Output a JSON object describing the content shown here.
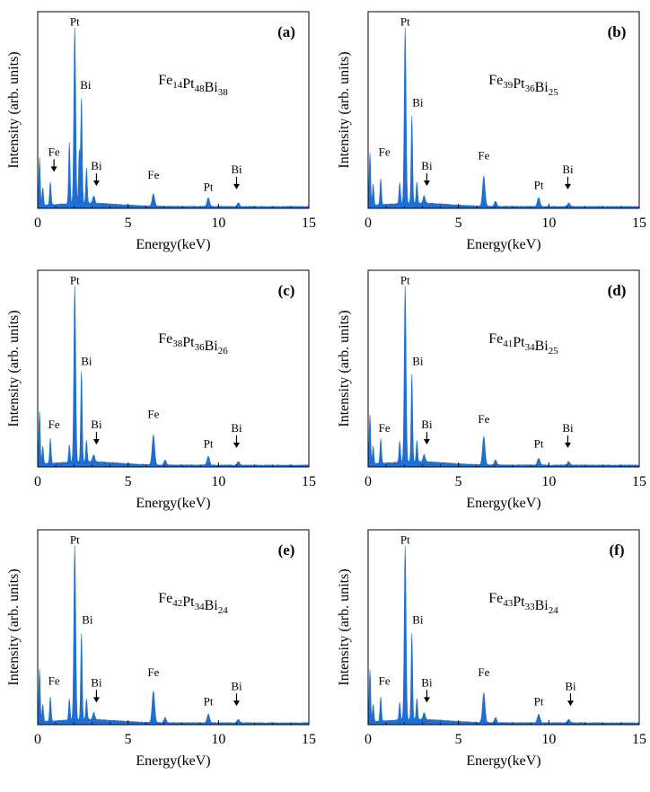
{
  "chart_data": [
    {
      "type": "area",
      "panel_label": "(a)",
      "composition": [
        {
          "el": "Fe",
          "n": "14"
        },
        {
          "el": "Pt",
          "n": "48"
        },
        {
          "el": "Bi",
          "n": "38"
        }
      ],
      "xlabel": "Energy(keV)",
      "ylabel": "Intensity (arb. units)",
      "xlim": [
        0,
        15
      ],
      "xticks": [
        "0",
        "5",
        "10",
        "15"
      ],
      "color": "#1f6fd1",
      "peaks": [
        {
          "x": 0.1,
          "y": 0.27,
          "w": 0.04
        },
        {
          "x": 0.28,
          "y": 0.1,
          "w": 0.04
        },
        {
          "x": 0.7,
          "y": 0.13,
          "w": 0.04
        },
        {
          "x": 1.75,
          "y": 0.35,
          "w": 0.04
        },
        {
          "x": 2.05,
          "y": 1.0,
          "w": 0.05
        },
        {
          "x": 2.3,
          "y": 0.3,
          "w": 0.04
        },
        {
          "x": 2.42,
          "y": 0.6,
          "w": 0.04
        },
        {
          "x": 2.7,
          "y": 0.2,
          "w": 0.04
        },
        {
          "x": 3.1,
          "y": 0.04,
          "w": 0.06
        },
        {
          "x": 6.4,
          "y": 0.07,
          "w": 0.07
        },
        {
          "x": 9.44,
          "y": 0.05,
          "w": 0.07
        },
        {
          "x": 11.1,
          "y": 0.02,
          "w": 0.07
        }
      ],
      "annotations": [
        {
          "text": "Pt",
          "x": 2.05,
          "y": 1.04,
          "arrow": false
        },
        {
          "text": "Bi",
          "x": 2.65,
          "y": 0.68,
          "arrow": false
        },
        {
          "text": "Fe",
          "x": 0.9,
          "y": 0.3,
          "arrow": true
        },
        {
          "text": "Bi",
          "x": 3.25,
          "y": 0.22,
          "arrow": true
        },
        {
          "text": "Fe",
          "x": 6.4,
          "y": 0.17,
          "arrow": false
        },
        {
          "text": "Pt",
          "x": 9.44,
          "y": 0.1,
          "arrow": false
        },
        {
          "text": "Bi",
          "x": 11.0,
          "y": 0.2,
          "arrow": true
        }
      ]
    },
    {
      "type": "area",
      "panel_label": "(b)",
      "composition": [
        {
          "el": "Fe",
          "n": "39"
        },
        {
          "el": "Pt",
          "n": "36"
        },
        {
          "el": "Bi",
          "n": "25"
        }
      ],
      "xlabel": "Energy(keV)",
      "ylabel": "Intensity (arb. units)",
      "xlim": [
        0,
        15
      ],
      "xticks": [
        "0",
        "5",
        "10",
        "15"
      ],
      "color": "#1f6fd1",
      "peaks": [
        {
          "x": 0.1,
          "y": 0.3,
          "w": 0.04
        },
        {
          "x": 0.28,
          "y": 0.12,
          "w": 0.04
        },
        {
          "x": 0.7,
          "y": 0.15,
          "w": 0.04
        },
        {
          "x": 1.75,
          "y": 0.12,
          "w": 0.04
        },
        {
          "x": 2.05,
          "y": 1.0,
          "w": 0.05
        },
        {
          "x": 2.42,
          "y": 0.5,
          "w": 0.04
        },
        {
          "x": 2.7,
          "y": 0.12,
          "w": 0.04
        },
        {
          "x": 3.1,
          "y": 0.04,
          "w": 0.06
        },
        {
          "x": 6.4,
          "y": 0.17,
          "w": 0.07
        },
        {
          "x": 7.05,
          "y": 0.03,
          "w": 0.06
        },
        {
          "x": 9.44,
          "y": 0.05,
          "w": 0.07
        },
        {
          "x": 11.1,
          "y": 0.02,
          "w": 0.07
        }
      ],
      "annotations": [
        {
          "text": "Pt",
          "x": 2.05,
          "y": 1.04,
          "arrow": false
        },
        {
          "text": "Bi",
          "x": 2.75,
          "y": 0.58,
          "arrow": false
        },
        {
          "text": "Fe",
          "x": 0.9,
          "y": 0.3,
          "arrow": false
        },
        {
          "text": "Bi",
          "x": 3.25,
          "y": 0.22,
          "arrow": true
        },
        {
          "text": "Fe",
          "x": 6.4,
          "y": 0.28,
          "arrow": false
        },
        {
          "text": "Pt",
          "x": 9.44,
          "y": 0.11,
          "arrow": false
        },
        {
          "text": "Bi",
          "x": 11.05,
          "y": 0.2,
          "arrow": true
        }
      ]
    },
    {
      "type": "area",
      "panel_label": "(c)",
      "composition": [
        {
          "el": "Fe",
          "n": "38"
        },
        {
          "el": "Pt",
          "n": "36"
        },
        {
          "el": "Bi",
          "n": "26"
        }
      ],
      "xlabel": "Energy(keV)",
      "ylabel": "Intensity (arb. units)",
      "xlim": [
        0,
        15
      ],
      "xticks": [
        "0",
        "5",
        "10",
        "15"
      ],
      "color": "#1f6fd1",
      "peaks": [
        {
          "x": 0.1,
          "y": 0.3,
          "w": 0.04
        },
        {
          "x": 0.28,
          "y": 0.1,
          "w": 0.04
        },
        {
          "x": 0.7,
          "y": 0.14,
          "w": 0.04
        },
        {
          "x": 1.75,
          "y": 0.1,
          "w": 0.04
        },
        {
          "x": 2.05,
          "y": 1.0,
          "w": 0.05
        },
        {
          "x": 2.42,
          "y": 0.52,
          "w": 0.04
        },
        {
          "x": 2.7,
          "y": 0.12,
          "w": 0.04
        },
        {
          "x": 3.1,
          "y": 0.04,
          "w": 0.06
        },
        {
          "x": 6.4,
          "y": 0.17,
          "w": 0.07
        },
        {
          "x": 7.05,
          "y": 0.03,
          "w": 0.06
        },
        {
          "x": 9.44,
          "y": 0.05,
          "w": 0.07
        },
        {
          "x": 11.1,
          "y": 0.02,
          "w": 0.07
        }
      ],
      "annotations": [
        {
          "text": "Pt",
          "x": 2.05,
          "y": 1.04,
          "arrow": false
        },
        {
          "text": "Bi",
          "x": 2.7,
          "y": 0.58,
          "arrow": false
        },
        {
          "text": "Fe",
          "x": 0.9,
          "y": 0.22,
          "arrow": false
        },
        {
          "text": "Bi",
          "x": 3.25,
          "y": 0.22,
          "arrow": true
        },
        {
          "text": "Fe",
          "x": 6.4,
          "y": 0.28,
          "arrow": false
        },
        {
          "text": "Pt",
          "x": 9.44,
          "y": 0.11,
          "arrow": false
        },
        {
          "text": "Bi",
          "x": 11.0,
          "y": 0.2,
          "arrow": true
        }
      ]
    },
    {
      "type": "area",
      "panel_label": "(d)",
      "composition": [
        {
          "el": "Fe",
          "n": "41"
        },
        {
          "el": "Pt",
          "n": "34"
        },
        {
          "el": "Bi",
          "n": "25"
        }
      ],
      "xlabel": "Energy(keV)",
      "ylabel": "Intensity (arb. units)",
      "xlim": [
        0,
        15
      ],
      "xticks": [
        "0",
        "5",
        "10",
        "15"
      ],
      "color": "#1f6fd1",
      "peaks": [
        {
          "x": 0.1,
          "y": 0.28,
          "w": 0.04
        },
        {
          "x": 0.28,
          "y": 0.1,
          "w": 0.04
        },
        {
          "x": 0.7,
          "y": 0.14,
          "w": 0.04
        },
        {
          "x": 1.75,
          "y": 0.12,
          "w": 0.04
        },
        {
          "x": 2.05,
          "y": 1.0,
          "w": 0.05
        },
        {
          "x": 2.42,
          "y": 0.5,
          "w": 0.04
        },
        {
          "x": 2.7,
          "y": 0.12,
          "w": 0.04
        },
        {
          "x": 3.1,
          "y": 0.04,
          "w": 0.06
        },
        {
          "x": 6.4,
          "y": 0.16,
          "w": 0.07
        },
        {
          "x": 7.05,
          "y": 0.03,
          "w": 0.06
        },
        {
          "x": 9.44,
          "y": 0.04,
          "w": 0.07
        },
        {
          "x": 11.1,
          "y": 0.02,
          "w": 0.07
        }
      ],
      "annotations": [
        {
          "text": "Pt",
          "x": 2.05,
          "y": 1.04,
          "arrow": false
        },
        {
          "text": "Bi",
          "x": 2.75,
          "y": 0.58,
          "arrow": false
        },
        {
          "text": "Fe",
          "x": 0.9,
          "y": 0.2,
          "arrow": false
        },
        {
          "text": "Bi",
          "x": 3.25,
          "y": 0.22,
          "arrow": true
        },
        {
          "text": "Fe",
          "x": 6.4,
          "y": 0.25,
          "arrow": false
        },
        {
          "text": "Pt",
          "x": 9.44,
          "y": 0.11,
          "arrow": false
        },
        {
          "text": "Bi",
          "x": 11.05,
          "y": 0.2,
          "arrow": true
        }
      ]
    },
    {
      "type": "area",
      "panel_label": "(e)",
      "composition": [
        {
          "el": "Fe",
          "n": "42"
        },
        {
          "el": "Pt",
          "n": "34"
        },
        {
          "el": "Bi",
          "n": "24"
        }
      ],
      "xlabel": "Energy(keV)",
      "ylabel": "Intensity (arb. units)",
      "xlim": [
        0,
        15
      ],
      "xticks": [
        "0",
        "5",
        "10",
        "15"
      ],
      "color": "#1f6fd1",
      "peaks": [
        {
          "x": 0.1,
          "y": 0.3,
          "w": 0.04
        },
        {
          "x": 0.28,
          "y": 0.1,
          "w": 0.04
        },
        {
          "x": 0.7,
          "y": 0.14,
          "w": 0.04
        },
        {
          "x": 1.75,
          "y": 0.12,
          "w": 0.04
        },
        {
          "x": 2.05,
          "y": 1.0,
          "w": 0.05
        },
        {
          "x": 2.42,
          "y": 0.5,
          "w": 0.04
        },
        {
          "x": 2.7,
          "y": 0.12,
          "w": 0.04
        },
        {
          "x": 3.1,
          "y": 0.04,
          "w": 0.06
        },
        {
          "x": 6.4,
          "y": 0.18,
          "w": 0.07
        },
        {
          "x": 7.05,
          "y": 0.03,
          "w": 0.06
        },
        {
          "x": 9.44,
          "y": 0.05,
          "w": 0.07
        },
        {
          "x": 11.1,
          "y": 0.02,
          "w": 0.07
        }
      ],
      "annotations": [
        {
          "text": "Pt",
          "x": 2.05,
          "y": 1.04,
          "arrow": false
        },
        {
          "text": "Bi",
          "x": 2.75,
          "y": 0.58,
          "arrow": false
        },
        {
          "text": "Fe",
          "x": 0.9,
          "y": 0.23,
          "arrow": false
        },
        {
          "text": "Bi",
          "x": 3.25,
          "y": 0.22,
          "arrow": true
        },
        {
          "text": "Fe",
          "x": 6.4,
          "y": 0.28,
          "arrow": false
        },
        {
          "text": "Pt",
          "x": 9.44,
          "y": 0.11,
          "arrow": false
        },
        {
          "text": "Bi",
          "x": 11.0,
          "y": 0.2,
          "arrow": true
        }
      ]
    },
    {
      "type": "area",
      "panel_label": "(f)",
      "composition": [
        {
          "el": "Fe",
          "n": "43"
        },
        {
          "el": "Pt",
          "n": "33"
        },
        {
          "el": "Bi",
          "n": "24"
        }
      ],
      "xlabel": "Energy(keV)",
      "ylabel": "Intensity (arb. units)",
      "xlim": [
        0,
        15
      ],
      "xticks": [
        "0",
        "5",
        "10",
        "15"
      ],
      "color": "#1f6fd1",
      "peaks": [
        {
          "x": 0.1,
          "y": 0.3,
          "w": 0.04
        },
        {
          "x": 0.28,
          "y": 0.1,
          "w": 0.04
        },
        {
          "x": 0.7,
          "y": 0.14,
          "w": 0.04
        },
        {
          "x": 1.75,
          "y": 0.1,
          "w": 0.04
        },
        {
          "x": 2.05,
          "y": 1.0,
          "w": 0.05
        },
        {
          "x": 2.42,
          "y": 0.5,
          "w": 0.04
        },
        {
          "x": 2.7,
          "y": 0.12,
          "w": 0.04
        },
        {
          "x": 3.1,
          "y": 0.04,
          "w": 0.06
        },
        {
          "x": 6.4,
          "y": 0.17,
          "w": 0.07
        },
        {
          "x": 7.05,
          "y": 0.03,
          "w": 0.06
        },
        {
          "x": 9.44,
          "y": 0.05,
          "w": 0.07
        },
        {
          "x": 11.1,
          "y": 0.02,
          "w": 0.07
        }
      ],
      "annotations": [
        {
          "text": "Pt",
          "x": 2.05,
          "y": 1.04,
          "arrow": false
        },
        {
          "text": "Bi",
          "x": 2.75,
          "y": 0.58,
          "arrow": false
        },
        {
          "text": "Fe",
          "x": 0.9,
          "y": 0.23,
          "arrow": false
        },
        {
          "text": "Bi",
          "x": 3.25,
          "y": 0.22,
          "arrow": true
        },
        {
          "text": "Fe",
          "x": 6.4,
          "y": 0.28,
          "arrow": false
        },
        {
          "text": "Pt",
          "x": 9.44,
          "y": 0.11,
          "arrow": false
        },
        {
          "text": "Bi",
          "x": 11.2,
          "y": 0.2,
          "arrow": true
        }
      ]
    }
  ]
}
